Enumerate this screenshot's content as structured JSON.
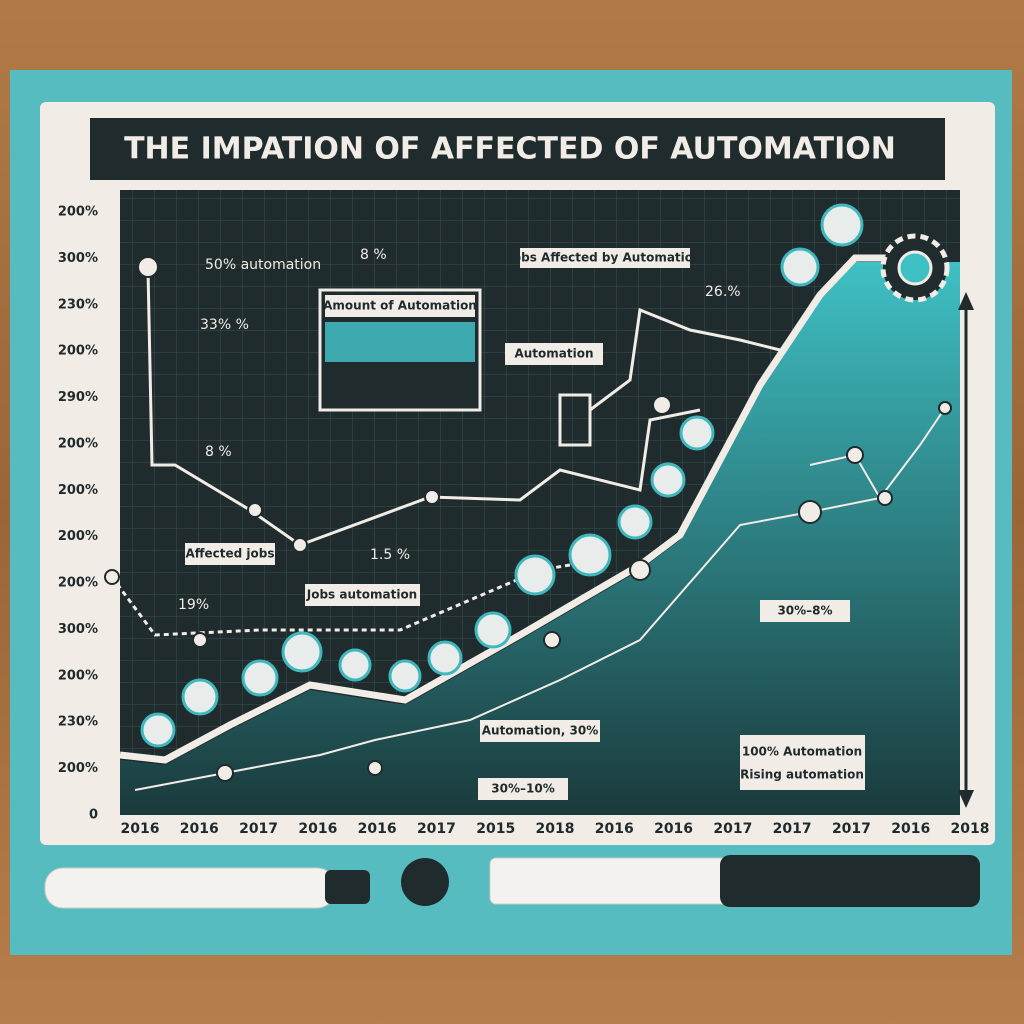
{
  "title": "THE IMPATION OF AFFECTED OF AUTOMATION",
  "y_axis_labels": [
    "200%",
    "300%",
    "230%",
    "200%",
    "290%",
    "200%",
    "200%",
    "200%",
    "200%",
    "300%",
    "200%",
    "230%",
    "200%",
    "0"
  ],
  "x_axis_labels": [
    "2016",
    "2016",
    "2017",
    "2016",
    "2016",
    "2017",
    "2015",
    "2018",
    "2016",
    "2016",
    "2017",
    "2017",
    "2017",
    "2016",
    "2018"
  ],
  "annotations": {
    "top_left": "50% automation",
    "top_mid": "8 %",
    "down_arrow": "33% %",
    "inset_title": "Amount of Automation",
    "automation_box": "Automation",
    "jobs_affected": "Jobs Affected by Automation",
    "right_pct": "26.%",
    "mid_pct": "8 %",
    "affected_jobs": "Affected jobs",
    "mid_pct2": "1.5 %",
    "left_pct": "19%",
    "jobs_automation": "Jobs automation",
    "range_right": "30%–8%",
    "automation_30": "Automation, 30%",
    "range_bottom": "30%–10%",
    "rising_line1": "100% Automation",
    "rising_line2": "Rising automation"
  }
}
